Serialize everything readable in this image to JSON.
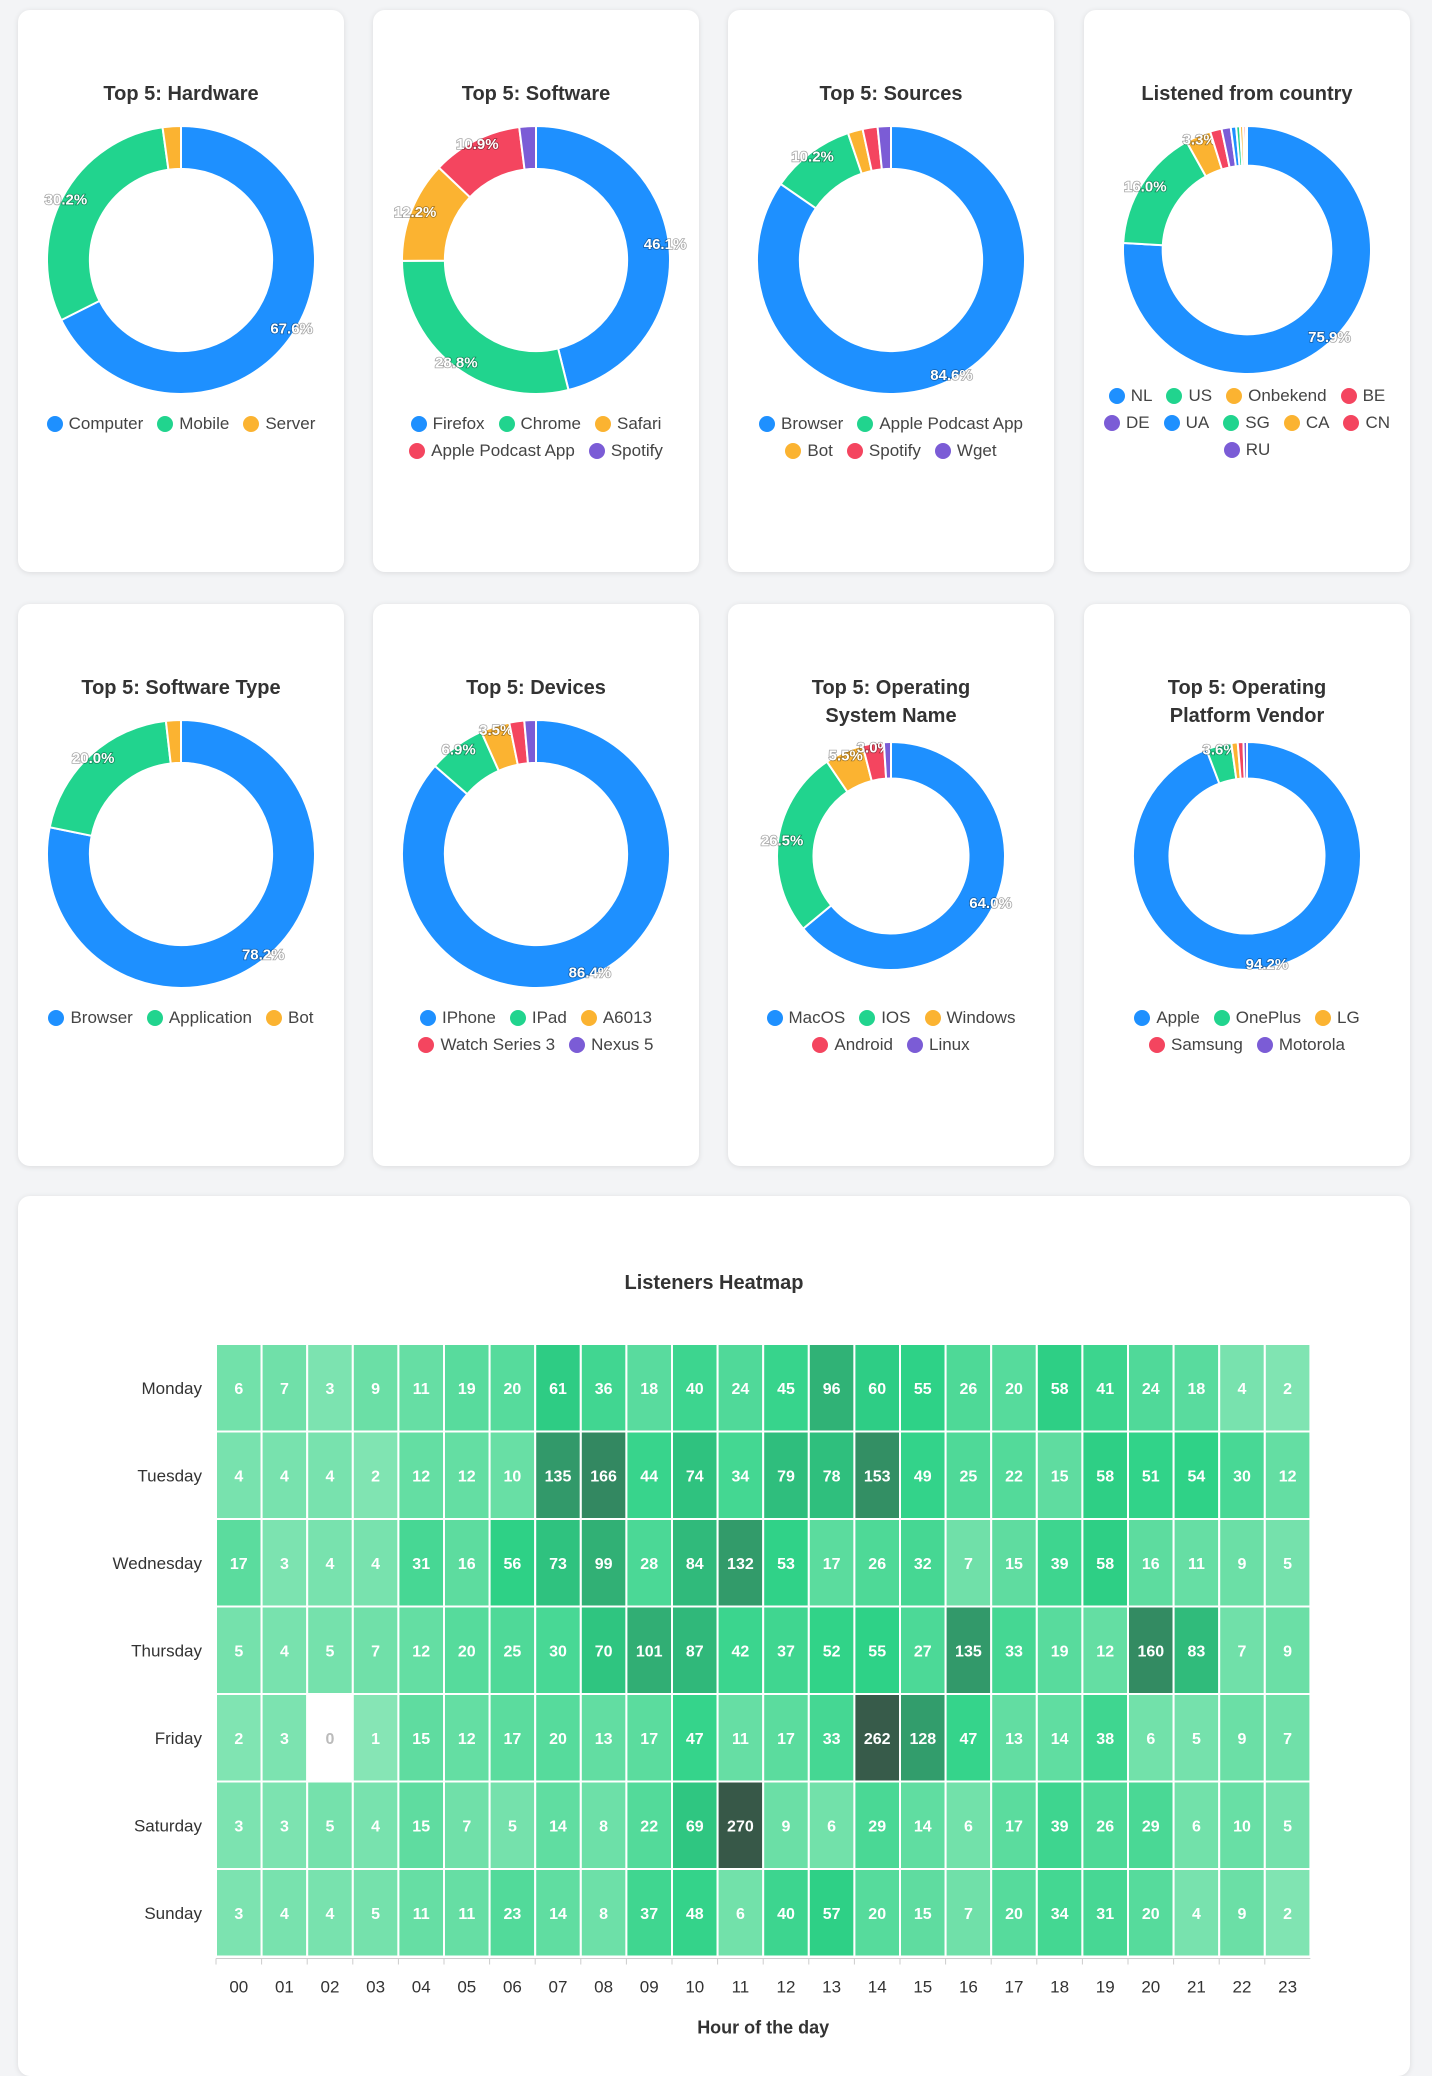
{
  "colors": {
    "blue": "#1e90ff",
    "green": "#21d48e",
    "orange": "#fbb331",
    "red": "#f4455f",
    "purple": "#7b5cd6"
  },
  "chart_data": [
    {
      "type": "pie",
      "title": "Top 5: Hardware",
      "labels": [
        "Computer",
        "Mobile",
        "Server"
      ],
      "values": [
        67.6,
        30.2,
        2.2
      ],
      "value_labels": [
        "67.6%",
        "30.2%",
        ""
      ],
      "colors": [
        "#1e90ff",
        "#21d48e",
        "#fbb331"
      ]
    },
    {
      "type": "pie",
      "title": "Top 5: Software",
      "labels": [
        "Firefox",
        "Chrome",
        "Safari",
        "Apple Podcast App",
        "Spotify"
      ],
      "values": [
        46.1,
        28.8,
        12.2,
        10.9,
        2.0
      ],
      "value_labels": [
        "46.1%",
        "28.8%",
        "12.2%",
        "10.9%",
        ""
      ],
      "colors": [
        "#1e90ff",
        "#21d48e",
        "#fbb331",
        "#f4455f",
        "#7b5cd6"
      ]
    },
    {
      "type": "pie",
      "title": "Top 5: Sources",
      "labels": [
        "Browser",
        "Apple Podcast App",
        "Bot",
        "Spotify",
        "Wget"
      ],
      "values": [
        84.6,
        10.2,
        1.8,
        1.8,
        1.6
      ],
      "value_labels": [
        "84.6%",
        "10.2%",
        "",
        "",
        ""
      ],
      "colors": [
        "#1e90ff",
        "#21d48e",
        "#fbb331",
        "#f4455f",
        "#7b5cd6"
      ]
    },
    {
      "type": "pie",
      "title": "Listened from country",
      "labels": [
        "NL",
        "US",
        "Onbekend",
        "BE",
        "DE",
        "UA",
        "SG",
        "CA",
        "CN",
        "RU"
      ],
      "values": [
        75.9,
        16.0,
        3.3,
        1.5,
        1.2,
        0.7,
        0.5,
        0.4,
        0.3,
        0.2
      ],
      "value_labels": [
        "75.9%",
        "16.0%",
        "3.3%",
        "",
        "",
        "",
        "",
        "",
        "",
        ""
      ],
      "colors": [
        "#1e90ff",
        "#21d48e",
        "#fbb331",
        "#f4455f",
        "#7b5cd6",
        "#1e90ff",
        "#21d48e",
        "#fbb331",
        "#f4455f",
        "#7b5cd6"
      ]
    },
    {
      "type": "pie",
      "title": "Top 5: Software Type",
      "labels": [
        "Browser",
        "Application",
        "Bot"
      ],
      "values": [
        78.2,
        20.0,
        1.8
      ],
      "value_labels": [
        "78.2%",
        "20.0%",
        ""
      ],
      "colors": [
        "#1e90ff",
        "#21d48e",
        "#fbb331"
      ]
    },
    {
      "type": "pie",
      "title": "Top 5: Devices",
      "labels": [
        "IPhone",
        "IPad",
        "A6013",
        "Watch Series 3",
        "Nexus 5"
      ],
      "values": [
        86.4,
        6.9,
        3.5,
        1.8,
        1.4
      ],
      "value_labels": [
        "86.4%",
        "6.9%",
        "3.5%",
        "",
        ""
      ],
      "colors": [
        "#1e90ff",
        "#21d48e",
        "#fbb331",
        "#f4455f",
        "#7b5cd6"
      ]
    },
    {
      "type": "pie",
      "title": "Top 5: Operating System Name",
      "labels": [
        "MacOS",
        "IOS",
        "Windows",
        "Android",
        "Linux"
      ],
      "values": [
        64.0,
        26.5,
        5.5,
        3.0,
        1.0
      ],
      "value_labels": [
        "64.0%",
        "26.5%",
        "5.5%",
        "3.0%",
        ""
      ],
      "colors": [
        "#1e90ff",
        "#21d48e",
        "#fbb331",
        "#f4455f",
        "#7b5cd6"
      ]
    },
    {
      "type": "pie",
      "title": "Top 5: Operating Platform Vendor",
      "labels": [
        "Apple",
        "OnePlus",
        "LG",
        "Samsung",
        "Motorola"
      ],
      "values": [
        94.2,
        3.6,
        0.9,
        0.8,
        0.5
      ],
      "value_labels": [
        "94.2%",
        "3.6%",
        "",
        "",
        ""
      ],
      "colors": [
        "#1e90ff",
        "#21d48e",
        "#fbb331",
        "#f4455f",
        "#7b5cd6"
      ]
    },
    {
      "type": "heatmap",
      "title": "Listeners Heatmap",
      "xlabel": "Hour of the day",
      "ylabel": "",
      "x": [
        "00",
        "01",
        "02",
        "03",
        "04",
        "05",
        "06",
        "07",
        "08",
        "09",
        "10",
        "11",
        "12",
        "13",
        "14",
        "15",
        "16",
        "17",
        "18",
        "19",
        "20",
        "21",
        "22",
        "23"
      ],
      "y": [
        "Monday",
        "Tuesday",
        "Wednesday",
        "Thursday",
        "Friday",
        "Saturday",
        "Sunday"
      ],
      "values": [
        [
          6,
          7,
          3,
          9,
          11,
          19,
          20,
          61,
          36,
          18,
          40,
          24,
          45,
          96,
          60,
          55,
          26,
          20,
          58,
          41,
          24,
          18,
          4,
          2
        ],
        [
          4,
          4,
          4,
          2,
          12,
          12,
          10,
          135,
          166,
          44,
          74,
          34,
          79,
          78,
          153,
          49,
          25,
          22,
          15,
          58,
          51,
          54,
          30,
          12
        ],
        [
          17,
          3,
          4,
          4,
          31,
          16,
          56,
          73,
          99,
          28,
          84,
          132,
          53,
          17,
          26,
          32,
          7,
          15,
          39,
          58,
          16,
          11,
          9,
          5
        ],
        [
          5,
          4,
          5,
          7,
          12,
          20,
          25,
          30,
          70,
          101,
          87,
          42,
          37,
          52,
          55,
          27,
          135,
          33,
          19,
          12,
          160,
          83,
          7,
          9
        ],
        [
          2,
          3,
          0,
          1,
          15,
          12,
          17,
          20,
          13,
          17,
          47,
          11,
          17,
          33,
          262,
          128,
          47,
          13,
          14,
          38,
          6,
          5,
          9,
          7
        ],
        [
          3,
          3,
          5,
          4,
          15,
          7,
          5,
          14,
          8,
          22,
          69,
          270,
          9,
          6,
          29,
          14,
          6,
          17,
          39,
          26,
          29,
          6,
          10,
          5
        ],
        [
          3,
          4,
          4,
          5,
          11,
          11,
          23,
          14,
          8,
          37,
          48,
          6,
          40,
          57,
          20,
          15,
          7,
          20,
          34,
          31,
          20,
          4,
          9,
          2
        ]
      ]
    }
  ]
}
